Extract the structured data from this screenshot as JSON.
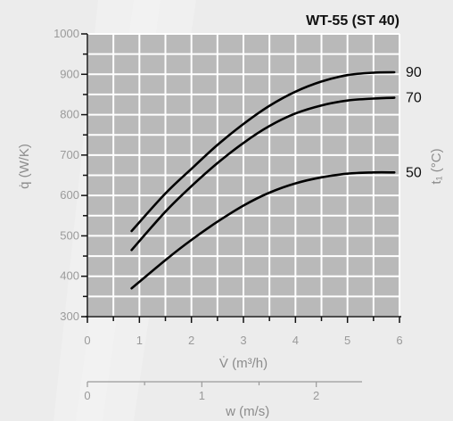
{
  "colors": {
    "background": "#ececec",
    "plot_area": "#b9b9b9",
    "grid": "#ffffff",
    "curve": "#000000",
    "tick_text": "#9a9a9a"
  },
  "chart_data": {
    "type": "line",
    "title": "WT-55 (ST 40)",
    "xlabel": "V̇ (m³/h)",
    "ylabel": "q̇ (W/K)",
    "right_label": "t₁ (°C)",
    "secondary_x": {
      "label": "w (m/s)",
      "ticks": [
        "0",
        "1",
        "2"
      ],
      "tick_values_in_primary_units": [
        0,
        2.2,
        4.4
      ]
    },
    "xlim": [
      0,
      6
    ],
    "ylim": [
      300,
      1000
    ],
    "x_ticks": [
      "0",
      "1",
      "2",
      "3",
      "4",
      "5",
      "6"
    ],
    "y_ticks": [
      "300",
      "400",
      "500",
      "600",
      "700",
      "800",
      "900",
      "1000"
    ],
    "grid": true,
    "series": [
      {
        "name": "90",
        "x": [
          0.85,
          1.5,
          2.0,
          2.5,
          3.0,
          3.5,
          4.0,
          4.5,
          5.0,
          5.5,
          5.9
        ],
        "values": [
          512,
          605,
          666,
          725,
          777,
          822,
          857,
          882,
          898,
          904,
          905
        ]
      },
      {
        "name": "70",
        "x": [
          0.85,
          1.5,
          2.0,
          2.5,
          3.0,
          3.5,
          4.0,
          4.5,
          5.0,
          5.5,
          5.9
        ],
        "values": [
          465,
          560,
          623,
          680,
          730,
          772,
          803,
          823,
          835,
          840,
          842
        ]
      },
      {
        "name": "50",
        "x": [
          0.85,
          1.5,
          2.0,
          2.5,
          3.0,
          3.5,
          4.0,
          4.5,
          5.0,
          5.5,
          5.9
        ],
        "values": [
          370,
          440,
          490,
          535,
          575,
          607,
          630,
          645,
          654,
          657,
          657
        ]
      }
    ]
  }
}
